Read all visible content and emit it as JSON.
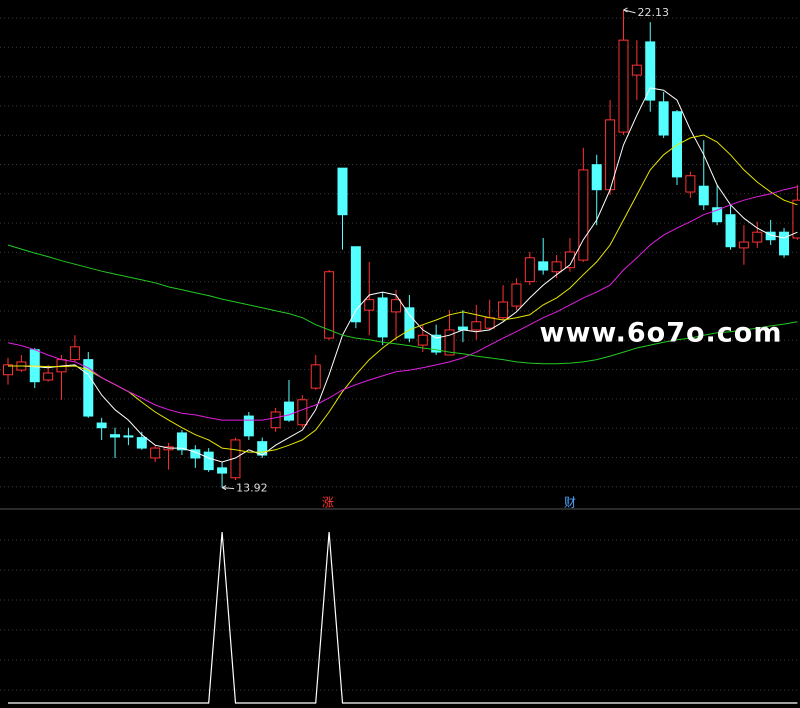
{
  "chart_data": {
    "type": "candlestick",
    "open": [
      15.86,
      15.94,
      16.29,
      15.77,
      15.91,
      16.12,
      16.12,
      15.03,
      14.83,
      14.81,
      14.78,
      14.43,
      14.57,
      14.86,
      14.57,
      14.53,
      14.26,
      14.09,
      15.15,
      14.71,
      14.95,
      15.39,
      15.0,
      15.63,
      16.49,
      19.41,
      18.06,
      16.97,
      17.18,
      16.94,
      17.01,
      16.37,
      16.54,
      16.2,
      16.68,
      16.63,
      16.66,
      16.84,
      17.04,
      17.46,
      17.8,
      17.63,
      17.7,
      17.83,
      19.47,
      19.04,
      20.03,
      21.01,
      21.58,
      20.55,
      20.38,
      19.0,
      19.1,
      18.73,
      18.61,
      18.04,
      18.14,
      18.31,
      18.31,
      18.21
    ],
    "high": [
      16.15,
      16.2,
      16.32,
      16.03,
      16.2,
      16.54,
      16.25,
      15.12,
      14.95,
      14.95,
      14.88,
      14.65,
      14.69,
      14.91,
      14.65,
      14.6,
      14.36,
      14.78,
      15.22,
      14.78,
      15.29,
      15.77,
      15.51,
      16.2,
      17.66,
      19.41,
      18.06,
      17.8,
      17.28,
      17.32,
      17.23,
      16.72,
      16.72,
      16.97,
      16.97,
      17.06,
      17.15,
      17.4,
      17.52,
      17.97,
      18.21,
      17.92,
      18.21,
      19.76,
      19.64,
      20.58,
      22.13,
      21.61,
      21.92,
      20.72,
      20.41,
      19.35,
      19.89,
      19.12,
      18.78,
      18.43,
      18.49,
      18.52,
      18.38,
      19.12
    ],
    "low": [
      15.69,
      15.91,
      15.63,
      15.74,
      15.43,
      16.08,
      15.12,
      14.74,
      14.43,
      14.65,
      14.57,
      14.36,
      14.23,
      14.48,
      14.26,
      14.19,
      13.92,
      14.05,
      14.74,
      14.43,
      14.88,
      15.05,
      14.95,
      15.6,
      16.46,
      18.01,
      16.66,
      16.54,
      16.37,
      16.46,
      16.42,
      16.25,
      16.2,
      16.2,
      16.42,
      16.46,
      16.63,
      16.8,
      16.97,
      17.4,
      17.58,
      17.52,
      17.63,
      17.8,
      18.43,
      18.95,
      19.98,
      20.58,
      20.38,
      19.93,
      19.12,
      18.9,
      18.69,
      18.43,
      18.01,
      17.75,
      18.04,
      18.09,
      17.87,
      18.18
    ],
    "close": [
      16.03,
      16.08,
      15.74,
      15.89,
      16.12,
      16.34,
      15.15,
      14.95,
      14.79,
      14.79,
      14.6,
      14.6,
      14.62,
      14.57,
      14.43,
      14.23,
      14.17,
      14.74,
      14.81,
      14.48,
      15.22,
      15.08,
      15.43,
      16.03,
      17.63,
      18.61,
      16.77,
      17.15,
      16.51,
      17.15,
      16.49,
      16.54,
      16.25,
      16.63,
      16.63,
      16.77,
      16.84,
      17.11,
      17.42,
      17.87,
      17.66,
      17.8,
      17.97,
      19.38,
      19.04,
      20.24,
      21.61,
      21.18,
      20.58,
      19.98,
      19.26,
      19.28,
      18.78,
      18.49,
      18.06,
      18.14,
      18.31,
      18.18,
      17.92,
      18.86
    ],
    "up_color": "#ff3232",
    "down_color": "#54ffff",
    "ylim": [
      13.57,
      22.3
    ],
    "grid": true,
    "series": [
      {
        "color": "#ffffff",
        "values": [
          16.01,
          16.01,
          16.0,
          15.98,
          16.01,
          16.03,
          15.86,
          15.51,
          15.26,
          15.08,
          14.83,
          14.65,
          14.6,
          14.6,
          14.53,
          14.43,
          14.36,
          14.43,
          14.57,
          14.48,
          14.65,
          14.78,
          14.91,
          15.26,
          15.86,
          16.54,
          16.97,
          17.23,
          17.28,
          17.23,
          16.89,
          16.63,
          16.49,
          16.54,
          16.63,
          16.6,
          16.63,
          16.77,
          16.94,
          17.18,
          17.4,
          17.58,
          17.75,
          18.18,
          18.52,
          19.04,
          19.81,
          20.32,
          20.79,
          20.75,
          20.58,
          20.07,
          19.64,
          19.12,
          18.78,
          18.55,
          18.38,
          18.26,
          18.21,
          18.31
        ]
      },
      {
        "color": "#e6e600",
        "values": [
          16.01,
          16.01,
          16.01,
          16.0,
          16.0,
          16.01,
          15.94,
          15.81,
          15.69,
          15.57,
          15.39,
          15.22,
          15.08,
          14.95,
          14.83,
          14.74,
          14.6,
          14.57,
          14.53,
          14.53,
          14.57,
          14.65,
          14.74,
          14.91,
          15.22,
          15.57,
          15.86,
          16.12,
          16.32,
          16.49,
          16.63,
          16.72,
          16.8,
          16.89,
          16.94,
          16.89,
          16.84,
          16.8,
          16.84,
          16.89,
          17.06,
          17.18,
          17.35,
          17.58,
          17.8,
          18.09,
          18.52,
          18.95,
          19.38,
          19.64,
          19.81,
          19.93,
          19.98,
          19.86,
          19.64,
          19.38,
          19.17,
          19.0,
          18.86,
          18.78
        ]
      },
      {
        "color": "#e020e0",
        "values": [
          16.41,
          16.36,
          16.29,
          16.2,
          16.12,
          16.08,
          15.98,
          15.81,
          15.69,
          15.57,
          15.46,
          15.34,
          15.26,
          15.2,
          15.17,
          15.12,
          15.08,
          15.08,
          15.08,
          15.08,
          15.12,
          15.17,
          15.26,
          15.34,
          15.46,
          15.6,
          15.69,
          15.77,
          15.84,
          15.91,
          15.94,
          15.98,
          16.03,
          16.08,
          16.15,
          16.25,
          16.37,
          16.49,
          16.6,
          16.72,
          16.84,
          16.94,
          17.06,
          17.18,
          17.28,
          17.4,
          17.66,
          17.87,
          18.09,
          18.26,
          18.38,
          18.49,
          18.61,
          18.69,
          18.78,
          18.86,
          18.92,
          18.97,
          19.04,
          19.09
        ]
      },
      {
        "color": "#22c922",
        "values": [
          18.09,
          18.02,
          17.95,
          17.89,
          17.82,
          17.76,
          17.7,
          17.64,
          17.59,
          17.54,
          17.49,
          17.44,
          17.37,
          17.32,
          17.27,
          17.22,
          17.16,
          17.11,
          17.06,
          17.01,
          16.96,
          16.91,
          16.84,
          16.72,
          16.63,
          16.54,
          16.49,
          16.46,
          16.42,
          16.39,
          16.36,
          16.32,
          16.29,
          16.25,
          16.22,
          16.18,
          16.15,
          16.12,
          16.08,
          16.06,
          16.05,
          16.05,
          16.06,
          16.08,
          16.12,
          16.18,
          16.25,
          16.32,
          16.37,
          16.42,
          16.46,
          16.49,
          16.54,
          16.58,
          16.6,
          16.63,
          16.66,
          16.7,
          16.73,
          16.77
        ]
      }
    ],
    "markers": [
      "涨",
      "财"
    ],
    "watermark": "www.6o7o.com",
    "indicator": {
      "type": "line",
      "color": "#ffffff",
      "values": [
        0,
        0,
        0,
        0,
        0,
        0,
        0,
        0,
        0,
        0,
        0,
        0,
        0,
        0,
        0,
        0,
        1,
        0,
        0,
        0,
        0,
        0,
        0,
        0,
        1,
        0,
        0,
        0,
        0,
        0,
        0,
        0,
        0,
        0,
        0,
        0,
        0,
        0,
        0,
        0,
        0,
        0,
        0,
        0,
        0,
        0,
        0,
        0,
        0,
        0,
        0,
        0,
        0,
        0,
        0,
        0,
        0,
        0,
        0,
        0
      ]
    }
  }
}
